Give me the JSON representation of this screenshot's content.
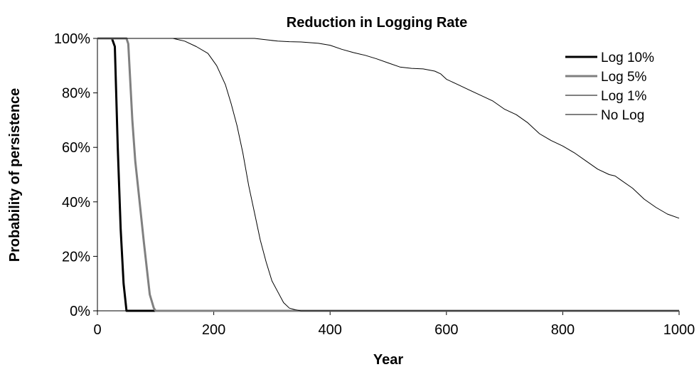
{
  "chart_data": {
    "type": "line",
    "title": "Reduction in Logging Rate",
    "xlabel": "Year",
    "ylabel": "Probability of persistence",
    "xlim": [
      0,
      1000
    ],
    "ylim": [
      0,
      100
    ],
    "x_ticks": [
      "0",
      "200",
      "400",
      "600",
      "800",
      "1000"
    ],
    "y_ticks": [
      "0%",
      "20%",
      "40%",
      "60%",
      "80%",
      "100%"
    ],
    "grid": false,
    "legend_position": "top-right",
    "series": [
      {
        "name": "Log 10%",
        "color": "#000000",
        "points": [
          [
            0,
            100
          ],
          [
            20,
            100
          ],
          [
            25,
            100
          ],
          [
            30,
            97
          ],
          [
            35,
            60
          ],
          [
            40,
            30
          ],
          [
            45,
            10
          ],
          [
            50,
            0
          ],
          [
            1000,
            0
          ]
        ]
      },
      {
        "name": "Log 5%",
        "color": "#808080",
        "points": [
          [
            0,
            100
          ],
          [
            40,
            100
          ],
          [
            50,
            100
          ],
          [
            53,
            98
          ],
          [
            60,
            70
          ],
          [
            65,
            55
          ],
          [
            70,
            45
          ],
          [
            80,
            25
          ],
          [
            90,
            6
          ],
          [
            97,
            1
          ],
          [
            100,
            0
          ],
          [
            1000,
            0
          ]
        ]
      },
      {
        "name": "Log 1%",
        "color": "#000000",
        "points": [
          [
            0,
            100
          ],
          [
            100,
            100
          ],
          [
            130,
            100
          ],
          [
            150,
            99
          ],
          [
            170,
            97
          ],
          [
            190,
            94.5
          ],
          [
            205,
            90
          ],
          [
            220,
            83
          ],
          [
            230,
            76
          ],
          [
            240,
            68
          ],
          [
            250,
            58
          ],
          [
            260,
            46
          ],
          [
            270,
            36
          ],
          [
            280,
            26
          ],
          [
            290,
            18
          ],
          [
            300,
            11
          ],
          [
            310,
            7
          ],
          [
            320,
            3
          ],
          [
            330,
            1
          ],
          [
            340,
            0.4
          ],
          [
            350,
            0
          ],
          [
            1000,
            0
          ]
        ]
      },
      {
        "name": "No Log",
        "color": "#000000",
        "points": [
          [
            0,
            100
          ],
          [
            270,
            100
          ],
          [
            290,
            99.5
          ],
          [
            310,
            99
          ],
          [
            330,
            98.8
          ],
          [
            350,
            98.7
          ],
          [
            380,
            98.2
          ],
          [
            400,
            97.5
          ],
          [
            420,
            96
          ],
          [
            440,
            94.8
          ],
          [
            460,
            93.8
          ],
          [
            480,
            92.5
          ],
          [
            500,
            91
          ],
          [
            520,
            89.5
          ],
          [
            540,
            89
          ],
          [
            560,
            88.8
          ],
          [
            580,
            88
          ],
          [
            590,
            87
          ],
          [
            600,
            85
          ],
          [
            620,
            83
          ],
          [
            640,
            81
          ],
          [
            660,
            79
          ],
          [
            680,
            77
          ],
          [
            700,
            74
          ],
          [
            720,
            72
          ],
          [
            740,
            69
          ],
          [
            750,
            67
          ],
          [
            760,
            65
          ],
          [
            780,
            62.5
          ],
          [
            800,
            60.5
          ],
          [
            820,
            58
          ],
          [
            840,
            55
          ],
          [
            860,
            52
          ],
          [
            880,
            50
          ],
          [
            890,
            49.5
          ],
          [
            900,
            48
          ],
          [
            920,
            45
          ],
          [
            940,
            41
          ],
          [
            960,
            38
          ],
          [
            980,
            35.5
          ],
          [
            1000,
            34
          ]
        ]
      }
    ]
  }
}
